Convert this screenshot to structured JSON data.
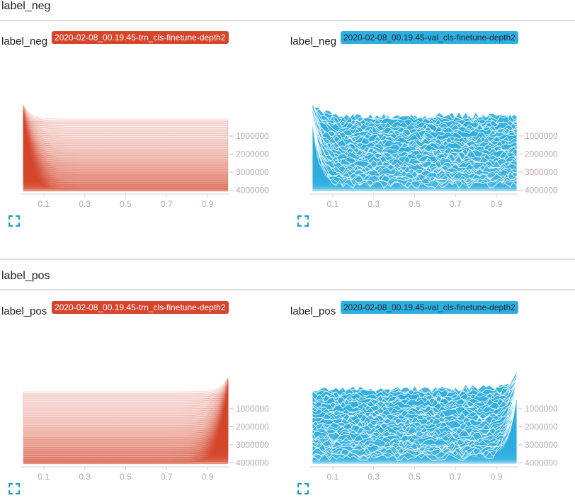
{
  "sections": [
    {
      "title": "label_neg",
      "cards": [
        {
          "title": "label_neg",
          "run": "2020-02-08_00.19.45-trn_cls-finetune-depth2",
          "kind": "trn",
          "color": "#d4452b",
          "chart_data": {
            "type": "area",
            "title": "label_neg",
            "x_ticks": [
              "0.1",
              "0.3",
              "0.5",
              "0.7",
              "0.9"
            ],
            "y_ticks": [
              "1000000",
              "2000000",
              "3000000",
              "4000000"
            ],
            "x_range": [
              0.0,
              1.0
            ],
            "y_range": [
              0,
              4000000
            ],
            "peak_location": "left",
            "noisy": false
          }
        },
        {
          "title": "label_neg",
          "run": "2020-02-08_00.19.45-val_cls-finetune-depth2",
          "kind": "val",
          "color": "#2faee0",
          "chart_data": {
            "type": "area",
            "title": "label_neg",
            "x_ticks": [
              "0.1",
              "0.3",
              "0.5",
              "0.7",
              "0.9"
            ],
            "y_ticks": [
              "1000000",
              "2000000",
              "3000000",
              "4000000"
            ],
            "x_range": [
              0.0,
              1.0
            ],
            "y_range": [
              0,
              4000000
            ],
            "peak_location": "left",
            "noisy": true
          }
        }
      ]
    },
    {
      "title": "label_pos",
      "cards": [
        {
          "title": "label_pos",
          "run": "2020-02-08_00.19.45-trn_cls-finetune-depth2",
          "kind": "trn",
          "color": "#d4452b",
          "chart_data": {
            "type": "area",
            "title": "label_pos",
            "x_ticks": [
              "0.1",
              "0.3",
              "0.5",
              "0.7",
              "0.9"
            ],
            "y_ticks": [
              "1000000",
              "2000000",
              "3000000",
              "4000000"
            ],
            "x_range": [
              0.0,
              1.0
            ],
            "y_range": [
              0,
              4000000
            ],
            "peak_location": "right",
            "noisy": false
          }
        },
        {
          "title": "label_pos",
          "run": "2020-02-08_00.19.45-val_cls-finetune-depth2",
          "kind": "val",
          "color": "#2faee0",
          "chart_data": {
            "type": "area",
            "title": "label_pos",
            "x_ticks": [
              "0.1",
              "0.3",
              "0.5",
              "0.7",
              "0.9"
            ],
            "y_ticks": [
              "1000000",
              "2000000",
              "3000000",
              "4000000"
            ],
            "x_range": [
              0.0,
              1.0
            ],
            "y_range": [
              0,
              4000000
            ],
            "peak_location": "right",
            "noisy": true
          }
        }
      ]
    }
  ],
  "icons": {
    "expand": "expand-icon"
  },
  "colors": {
    "trn": "#d4452b",
    "val": "#2faee0",
    "tick": "#b7a7aa",
    "rule": "#dcdcdc"
  }
}
